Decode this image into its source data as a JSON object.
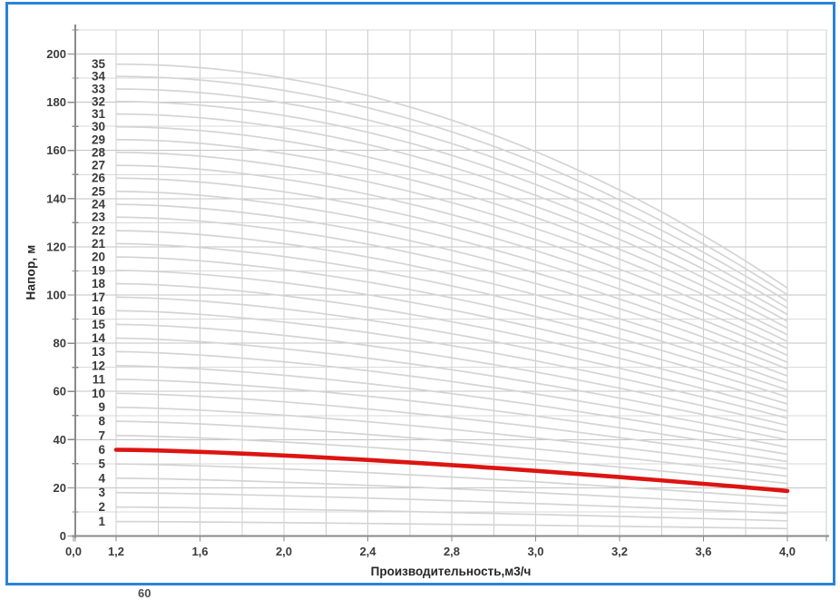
{
  "window": {
    "background": "#ffffff",
    "frame_color": "#2b82d9"
  },
  "chart_data": {
    "type": "line",
    "title": "",
    "xlabel": "Производительность,м3/ч",
    "ylabel": "Напор, м",
    "x_tick_labels": [
      "0,0",
      "1,2",
      "1,6",
      "2,0",
      "2,4",
      "2,8",
      "3,0",
      "3,2",
      "3,6",
      "4,0"
    ],
    "y_tick_labels": [
      "0",
      "20",
      "40",
      "60",
      "80",
      "100",
      "120",
      "140",
      "160",
      "180",
      "200"
    ],
    "ylim": [
      0,
      210
    ],
    "y_minor_step": 10,
    "flow_range_m3h": [
      1.2,
      4.0
    ],
    "grid": true,
    "legend_position": "none",
    "series_color": "#d4d4d4",
    "highlight": {
      "stage": 6,
      "color": "#dc1512"
    },
    "curvature_exponent_base": 1.3,
    "curvature_exponent_per_stage": 0.02,
    "series": [
      {
        "stage": 1,
        "head_at_1_2": 6.0,
        "head_at_4_0": 3.1
      },
      {
        "stage": 2,
        "head_at_1_2": 12.0,
        "head_at_4_0": 6.3
      },
      {
        "stage": 3,
        "head_at_1_2": 18.0,
        "head_at_4_0": 9.4
      },
      {
        "stage": 4,
        "head_at_1_2": 24.0,
        "head_at_4_0": 12.5
      },
      {
        "stage": 5,
        "head_at_1_2": 29.9,
        "head_at_4_0": 15.6
      },
      {
        "stage": 6,
        "head_at_1_2": 35.8,
        "head_at_4_0": 18.7
      },
      {
        "stage": 7,
        "head_at_1_2": 41.7,
        "head_at_4_0": 21.8
      },
      {
        "stage": 8,
        "head_at_1_2": 47.6,
        "head_at_4_0": 24.8
      },
      {
        "stage": 9,
        "head_at_1_2": 53.4,
        "head_at_4_0": 27.9
      },
      {
        "stage": 10,
        "head_at_1_2": 59.2,
        "head_at_4_0": 30.9
      },
      {
        "stage": 11,
        "head_at_1_2": 65.0,
        "head_at_4_0": 33.9
      },
      {
        "stage": 12,
        "head_at_1_2": 70.7,
        "head_at_4_0": 36.9
      },
      {
        "stage": 13,
        "head_at_1_2": 76.5,
        "head_at_4_0": 39.9
      },
      {
        "stage": 14,
        "head_at_1_2": 82.1,
        "head_at_4_0": 42.9
      },
      {
        "stage": 15,
        "head_at_1_2": 87.8,
        "head_at_4_0": 45.9
      },
      {
        "stage": 16,
        "head_at_1_2": 93.5,
        "head_at_4_0": 48.9
      },
      {
        "stage": 17,
        "head_at_1_2": 99.1,
        "head_at_4_0": 51.8
      },
      {
        "stage": 18,
        "head_at_1_2": 104.7,
        "head_at_4_0": 54.8
      },
      {
        "stage": 19,
        "head_at_1_2": 110.2,
        "head_at_4_0": 57.7
      },
      {
        "stage": 20,
        "head_at_1_2": 115.8,
        "head_at_4_0": 60.6
      },
      {
        "stage": 21,
        "head_at_1_2": 121.3,
        "head_at_4_0": 63.5
      },
      {
        "stage": 22,
        "head_at_1_2": 126.7,
        "head_at_4_0": 66.4
      },
      {
        "stage": 23,
        "head_at_1_2": 132.3,
        "head_at_4_0": 69.3
      },
      {
        "stage": 24,
        "head_at_1_2": 137.6,
        "head_at_4_0": 72.1
      },
      {
        "stage": 25,
        "head_at_1_2": 143.0,
        "head_at_4_0": 75.0
      },
      {
        "stage": 26,
        "head_at_1_2": 148.5,
        "head_at_4_0": 77.8
      },
      {
        "stage": 27,
        "head_at_1_2": 153.8,
        "head_at_4_0": 80.7
      },
      {
        "stage": 28,
        "head_at_1_2": 159.2,
        "head_at_4_0": 83.5
      },
      {
        "stage": 29,
        "head_at_1_2": 164.5,
        "head_at_4_0": 86.3
      },
      {
        "stage": 30,
        "head_at_1_2": 169.8,
        "head_at_4_0": 89.1
      },
      {
        "stage": 31,
        "head_at_1_2": 175.1,
        "head_at_4_0": 91.9
      },
      {
        "stage": 32,
        "head_at_1_2": 180.3,
        "head_at_4_0": 94.6
      },
      {
        "stage": 33,
        "head_at_1_2": 185.5,
        "head_at_4_0": 97.4
      },
      {
        "stage": 34,
        "head_at_1_2": 190.7,
        "head_at_4_0": 100.1
      },
      {
        "stage": 35,
        "head_at_1_2": 195.8,
        "head_at_4_0": 102.9
      }
    ]
  },
  "clipped_bottom_text": "60"
}
